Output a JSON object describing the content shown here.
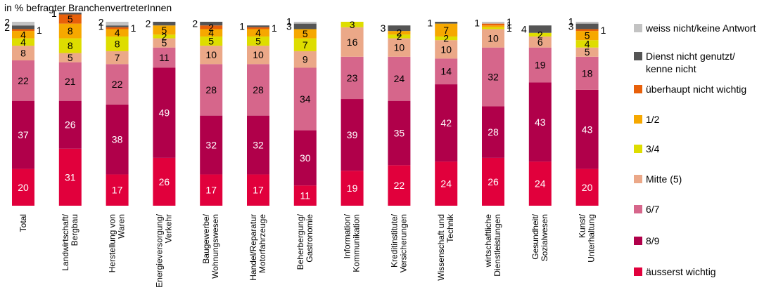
{
  "chart_data": {
    "type": "bar",
    "stacked": true,
    "title": "in % befragter BranchenvertreterInnen",
    "ylim": [
      0,
      100
    ],
    "categories": [
      [
        "Total"
      ],
      [
        "Landwirtschaft/",
        "Bergbau"
      ],
      [
        "Herstellung von",
        "Waren"
      ],
      [
        "Energieversorgung/",
        "Verkehr"
      ],
      [
        "Baugewerbe/",
        "Wohnungswesen"
      ],
      [
        "Handel/Reparatur",
        "Motorfahrzeuge"
      ],
      [
        "Beherbergung/",
        "Gastronomie"
      ],
      [
        "Information/",
        "Kommunikation"
      ],
      [
        "Kreditinstitute/",
        "Versicherungen"
      ],
      [
        "Wissenschaft und",
        "Technik"
      ],
      [
        "wirtschaftliche",
        "Dienstleistungen"
      ],
      [
        "Gesundheit/",
        "Sozialwesen"
      ],
      [
        "Kunst/",
        "Unterhaltung"
      ]
    ],
    "series": [
      {
        "name": "äusserst wichtig",
        "color": "#e1003c",
        "label_color": "#ffffff",
        "values": [
          20,
          31,
          17,
          26,
          17,
          17,
          11,
          19,
          22,
          24,
          26,
          24,
          20
        ]
      },
      {
        "name": "8/9",
        "color": "#b0004a",
        "label_color": "#ffffff",
        "values": [
          37,
          26,
          38,
          49,
          32,
          32,
          30,
          39,
          35,
          42,
          28,
          43,
          43
        ]
      },
      {
        "name": "6/7",
        "color": "#d6668b",
        "label_color": "#000000",
        "values": [
          22,
          21,
          22,
          11,
          28,
          28,
          34,
          23,
          24,
          14,
          32,
          19,
          18
        ]
      },
      {
        "name": "Mitte (5)",
        "color": "#eba888",
        "label_color": "#000000",
        "values": [
          8,
          5,
          7,
          5,
          10,
          10,
          9,
          16,
          10,
          10,
          10,
          6,
          5
        ]
      },
      {
        "name": "3/4",
        "color": "#dedd00",
        "label_color": "#000000",
        "values": [
          4,
          8,
          8,
          2,
          5,
          5,
          7,
          3,
          2,
          2,
          1,
          2,
          4
        ]
      },
      {
        "name": "1/2",
        "color": "#f6a800",
        "label_color": "#000000",
        "values": [
          4,
          8,
          4,
          5,
          4,
          4,
          5,
          0,
          2,
          7,
          1,
          0,
          5
        ]
      },
      {
        "name": "überhaupt nicht wichtig",
        "color": "#e8600a",
        "label_color": "#000000",
        "values": [
          1,
          5,
          1,
          0,
          2,
          1,
          0,
          0,
          0,
          0,
          1,
          0,
          1
        ]
      },
      {
        "name": "Dienst nicht genutzt/ kenne nicht",
        "color": "#555555",
        "label_color": "#000000",
        "values": [
          2,
          1,
          1,
          2,
          2,
          1,
          3,
          0,
          3,
          1,
          0,
          4,
          3
        ]
      },
      {
        "name": "weiss nicht/keine Antwort",
        "color": "#c3c3c3",
        "label_color": "#ffffff",
        "values": [
          2,
          0,
          2,
          0,
          0,
          0,
          1,
          0,
          0,
          0,
          1,
          0,
          1
        ]
      }
    ],
    "legend_position": "right",
    "grid": false
  }
}
